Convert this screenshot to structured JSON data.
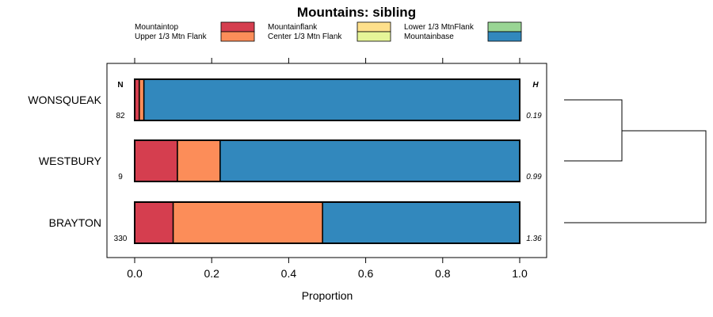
{
  "chart_data": {
    "type": "bar",
    "stacked": true,
    "horizontal": true,
    "title": "Mountains: sibling",
    "xlabel": "Proportion",
    "ylabel": "",
    "xlim": [
      -0.07,
      1.07
    ],
    "xticks": [
      0.0,
      0.2,
      0.4,
      0.6,
      0.8,
      1.0
    ],
    "xtick_labels": [
      "0.0",
      "0.2",
      "0.4",
      "0.6",
      "0.8",
      "1.0"
    ],
    "categories": [
      "WONSQUEAK",
      "WESTBURY",
      "BRAYTON"
    ],
    "n_header": "N",
    "h_header": "H",
    "n_values": [
      "82",
      "9",
      "330"
    ],
    "h_values": [
      "0.19",
      "0.99",
      "1.36"
    ],
    "legend_position": "top",
    "series": [
      {
        "name": "Mountaintop",
        "color": "#D53E4F",
        "values": [
          0.012,
          0.111,
          0.1
        ]
      },
      {
        "name": "Upper 1/3 Mtn Flank",
        "color": "#FC8D59",
        "values": [
          0.012,
          0.111,
          0.388
        ]
      },
      {
        "name": "Mountainflank",
        "color": "#FEE08B",
        "values": [
          0.0,
          0.0,
          0.0
        ]
      },
      {
        "name": "Center 1/3 Mtn Flank",
        "color": "#E6F598",
        "values": [
          0.0,
          0.0,
          0.0
        ]
      },
      {
        "name": "Lower 1/3 MtnFlank",
        "color": "#99D594",
        "values": [
          0.0,
          0.0,
          0.0
        ]
      },
      {
        "name": "Mountainbase",
        "color": "#3288BD",
        "values": [
          0.976,
          0.778,
          0.512
        ]
      }
    ],
    "dendrogram": {
      "merge_order": [
        [
          "WONSQUEAK",
          "WESTBURY"
        ],
        [
          "WONSQUEAK+WESTBURY",
          "BRAYTON"
        ]
      ]
    }
  }
}
